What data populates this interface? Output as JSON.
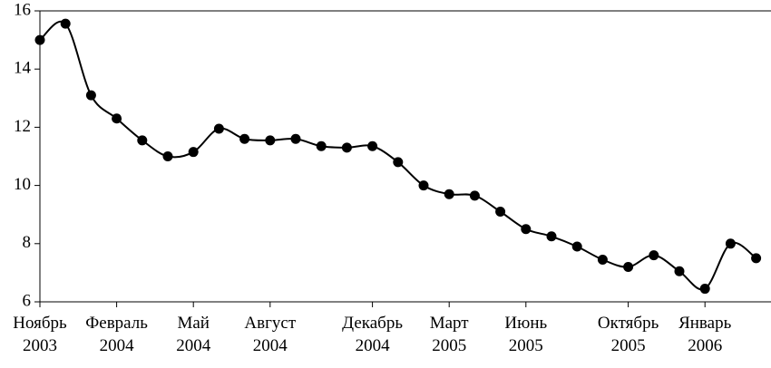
{
  "chart_data": {
    "type": "line",
    "categories": [
      "Ноябрь\n2003",
      null,
      null,
      "Февраль\n2004",
      null,
      null,
      "Май\n2004",
      null,
      null,
      "Август\n2004",
      null,
      null,
      null,
      "Декабрь\n2004",
      null,
      null,
      "Март\n2005",
      null,
      null,
      "Июнь\n2005",
      null,
      null,
      null,
      "Октябрь\n2005",
      null,
      null,
      "Январь\n2006",
      null,
      null
    ],
    "values": [
      15.0,
      15.56,
      13.1,
      12.3,
      11.55,
      11.0,
      11.15,
      11.95,
      11.6,
      11.55,
      11.6,
      11.35,
      11.3,
      11.35,
      10.8,
      10.0,
      9.7,
      9.65,
      9.1,
      8.5,
      8.25,
      7.9,
      7.45,
      7.2,
      7.6,
      7.05,
      6.45,
      8.0,
      7.5
    ],
    "color": "#000000",
    "ylim": [
      6,
      16
    ],
    "yticks": [
      6,
      8,
      10,
      12,
      14,
      16
    ],
    "smooth": true,
    "markers": true
  }
}
